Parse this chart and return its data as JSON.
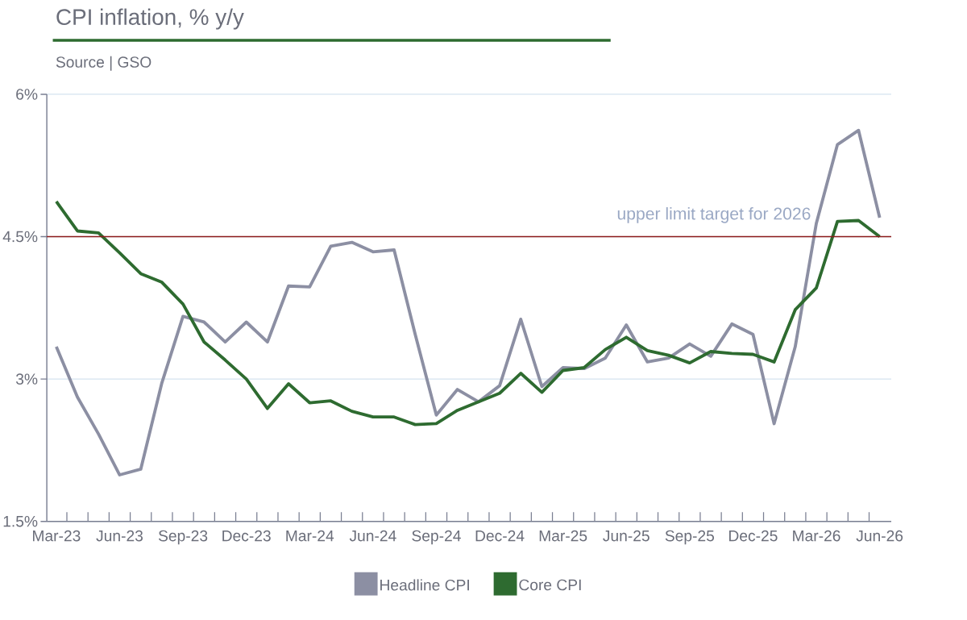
{
  "chart_data": {
    "type": "line",
    "title": "CPI inflation, % y/y",
    "annotations": [
      "Source | GSO"
    ],
    "categories": [
      "Mar-23",
      null,
      null,
      "Jun-23",
      null,
      null,
      "Sep-23",
      null,
      null,
      "Dec-23",
      null,
      null,
      "Mar-24",
      null,
      null,
      "Jun-24",
      null,
      null,
      "Sep-24",
      null,
      null,
      "Dec-24",
      null,
      null,
      "Mar-25",
      null,
      null,
      "Jun-25",
      null,
      null,
      "Sep-25",
      null,
      null,
      "Dec-25",
      null,
      null,
      "Mar-26",
      null,
      null,
      "Jun-26"
    ],
    "series": [
      {
        "name": "Headline CPI",
        "color": "#8c8fa3",
        "values": [
          3.34,
          2.81,
          2.42,
          1.99,
          2.05,
          2.96,
          3.66,
          3.6,
          3.39,
          3.6,
          3.39,
          3.98,
          3.97,
          4.4,
          4.44,
          4.34,
          4.36,
          3.47,
          2.62,
          2.89,
          2.76,
          2.93,
          3.63,
          2.92,
          3.12,
          3.11,
          3.22,
          3.57,
          3.18,
          3.22,
          3.37,
          3.24,
          3.58,
          3.47,
          2.53,
          3.34,
          4.64,
          5.47,
          5.62,
          4.7
        ]
      },
      {
        "name": "Core CPI",
        "color": "#2e6b30",
        "values": [
          4.87,
          4.56,
          4.54,
          4.33,
          4.11,
          4.02,
          3.79,
          3.39,
          3.2,
          3.0,
          2.69,
          2.95,
          2.75,
          2.77,
          2.66,
          2.6,
          2.6,
          2.52,
          2.53,
          2.67,
          2.76,
          2.85,
          3.06,
          2.86,
          3.09,
          3.12,
          3.31,
          3.44,
          3.3,
          3.25,
          3.17,
          3.29,
          3.27,
          3.26,
          3.18,
          3.73,
          3.96,
          4.66,
          4.67,
          4.5
        ]
      }
    ],
    "ylim": [
      1.5,
      6
    ],
    "yticks": [
      {
        "value": 1.5,
        "label": "1.5%"
      },
      {
        "value": 3,
        "label": "3%"
      },
      {
        "value": 4.5,
        "label": "4.5%"
      },
      {
        "value": 6,
        "label": "6%"
      }
    ],
    "ref_lines": [
      {
        "axis": "y",
        "value": 4.5,
        "label": "upper limit target for 2026",
        "color": "#8b1a1a"
      }
    ],
    "grid": "y",
    "legend": "bottom",
    "line_style": "solid"
  }
}
